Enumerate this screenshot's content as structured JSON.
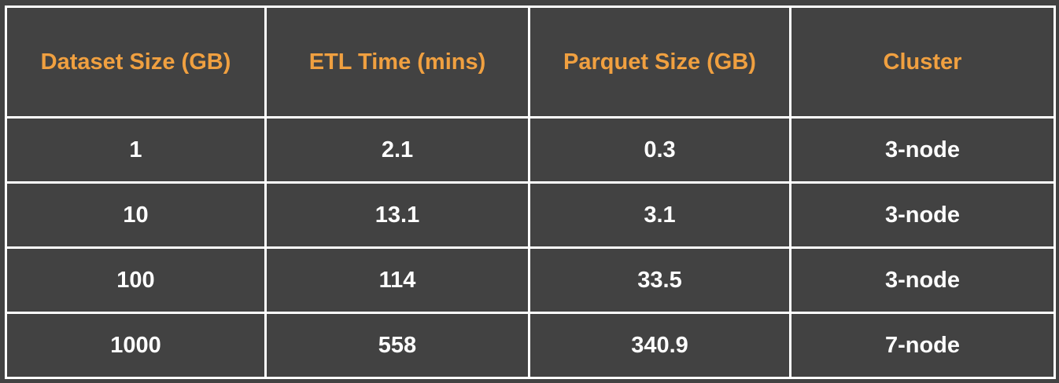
{
  "chart_data": {
    "type": "table",
    "columns": [
      "Dataset Size (GB)",
      "ETL Time (mins)",
      "Parquet Size (GB)",
      "Cluster"
    ],
    "rows": [
      [
        "1",
        "2.1",
        "0.3",
        "3-node"
      ],
      [
        "10",
        "13.1",
        "3.1",
        "3-node"
      ],
      [
        "100",
        "114",
        "33.5",
        "3-node"
      ],
      [
        "1000",
        "558",
        "340.9",
        "7-node"
      ]
    ]
  },
  "colors": {
    "background": "#424242",
    "header_text": "#f0a040",
    "cell_text": "#ffffff",
    "border": "#ffffff"
  }
}
